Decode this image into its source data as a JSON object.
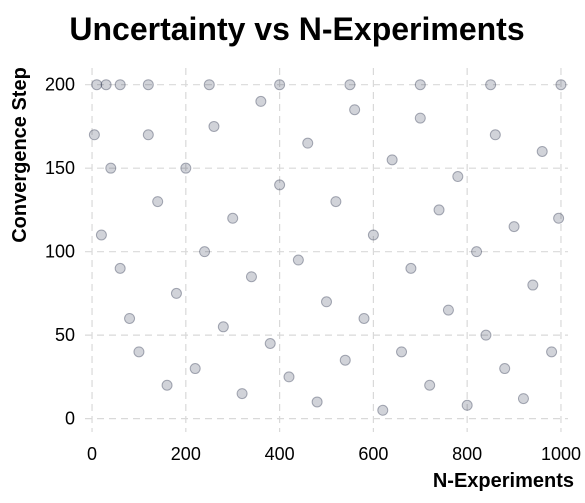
{
  "chart_data": {
    "type": "scatter",
    "title": "Uncertainty vs N-Experiments",
    "xlabel": "N-Experiments",
    "ylabel": "Convergence Step",
    "xlim": [
      -15,
      1015
    ],
    "ylim": [
      -8,
      210
    ],
    "xticks": [
      0,
      200,
      400,
      600,
      800,
      1000
    ],
    "yticks": [
      0,
      50,
      100,
      150,
      200
    ],
    "xtick_labels": [
      "0",
      "200",
      "400",
      "600",
      "800",
      "1000"
    ],
    "ytick_labels": [
      "0",
      "50",
      "100",
      "150",
      "200"
    ],
    "grid": true,
    "marker_color": "#1b2340",
    "marker_alpha": 0.2,
    "series": [
      {
        "description_of_distribution": "",
        "x_range": [
          0,
          1000
        ],
        "points": [
          [
            10,
            200
          ],
          [
            30,
            200
          ],
          [
            60,
            200
          ],
          [
            120,
            200
          ],
          [
            250,
            200
          ],
          [
            400,
            200
          ],
          [
            550,
            200
          ],
          [
            700,
            200
          ],
          [
            850,
            200
          ],
          [
            1000,
            200
          ],
          [
            5,
            170
          ],
          [
            20,
            110
          ],
          [
            40,
            150
          ],
          [
            60,
            90
          ],
          [
            80,
            60
          ],
          [
            100,
            40
          ],
          [
            120,
            170
          ],
          [
            140,
            130
          ],
          [
            160,
            20
          ],
          [
            180,
            75
          ],
          [
            200,
            150
          ],
          [
            220,
            30
          ],
          [
            240,
            100
          ],
          [
            260,
            175
          ],
          [
            280,
            55
          ],
          [
            300,
            120
          ],
          [
            320,
            15
          ],
          [
            340,
            85
          ],
          [
            360,
            190
          ],
          [
            380,
            45
          ],
          [
            400,
            140
          ],
          [
            420,
            25
          ],
          [
            440,
            95
          ],
          [
            460,
            165
          ],
          [
            480,
            10
          ],
          [
            500,
            70
          ],
          [
            520,
            130
          ],
          [
            540,
            35
          ],
          [
            560,
            185
          ],
          [
            580,
            60
          ],
          [
            600,
            110
          ],
          [
            620,
            5
          ],
          [
            640,
            155
          ],
          [
            660,
            40
          ],
          [
            680,
            90
          ],
          [
            700,
            180
          ],
          [
            720,
            20
          ],
          [
            740,
            125
          ],
          [
            760,
            65
          ],
          [
            780,
            145
          ],
          [
            800,
            8
          ],
          [
            820,
            100
          ],
          [
            840,
            50
          ],
          [
            860,
            170
          ],
          [
            880,
            30
          ],
          [
            900,
            115
          ],
          [
            920,
            12
          ],
          [
            940,
            80
          ],
          [
            960,
            160
          ],
          [
            980,
            40
          ],
          [
            995,
            120
          ]
        ]
      }
    ]
  }
}
